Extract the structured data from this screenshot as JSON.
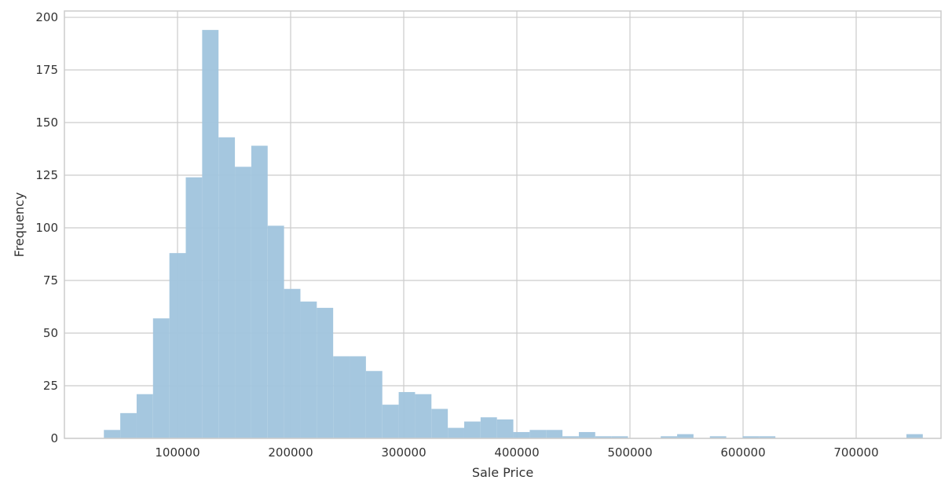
{
  "chart_data": {
    "type": "bar",
    "subtype": "histogram",
    "title": "",
    "xlabel": "Sale Price",
    "ylabel": "Frequency",
    "xlim": [
      0,
      775000
    ],
    "ylim": [
      0,
      203
    ],
    "xticks": [
      100000,
      200000,
      300000,
      400000,
      500000,
      600000,
      700000
    ],
    "yticks": [
      0,
      25,
      50,
      75,
      100,
      125,
      150,
      175,
      200
    ],
    "grid": true,
    "legend": "none",
    "bar_color": "#a3c6de",
    "bin_start": 34900,
    "bin_width": 14480,
    "values": [
      4,
      12,
      21,
      57,
      88,
      124,
      194,
      143,
      129,
      139,
      101,
      71,
      65,
      62,
      39,
      39,
      32,
      16,
      22,
      21,
      14,
      5,
      8,
      10,
      9,
      3,
      4,
      4,
      1,
      3,
      1,
      1,
      0,
      0,
      1,
      2,
      0,
      1,
      0,
      1,
      1,
      0,
      0,
      0,
      0,
      0,
      0,
      0,
      0,
      2
    ]
  }
}
